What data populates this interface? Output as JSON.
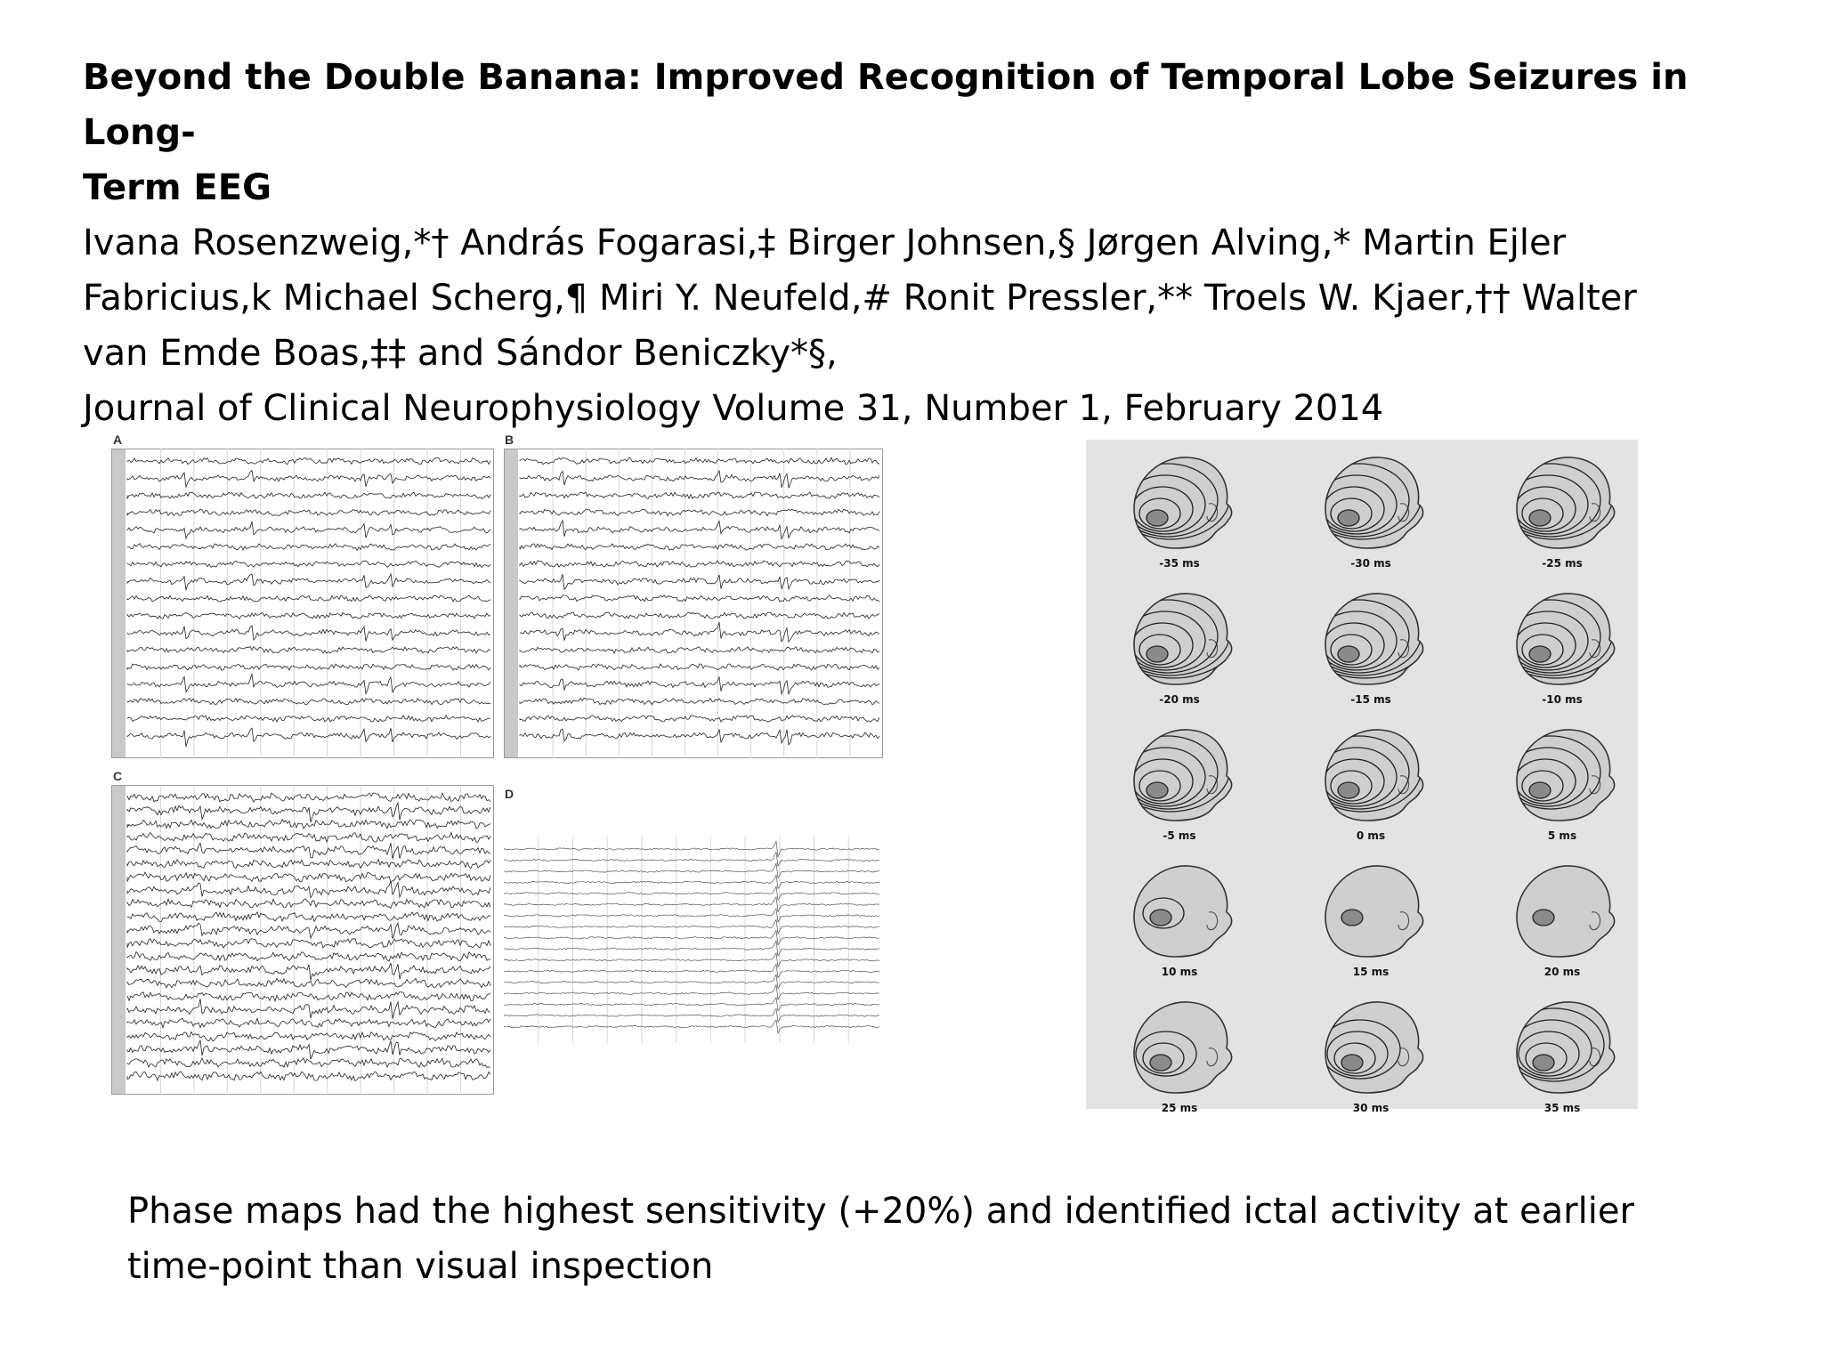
{
  "header": {
    "title_line1": "Beyond the Double Banana: Improved Recognition of Temporal Lobe Seizures in Long-",
    "title_line2": "Term EEG",
    "authors_line1": "Ivana Rosenzweig,*† András Fogarasi,‡ Birger Johnsen,§ Jørgen Alving,* Martin Ejler",
    "authors_line2": "Fabricius,k Michael Scherg,¶ Miri Y. Neufeld,# Ronit Pressler,** Troels W. Kjaer,†† Walter",
    "authors_line3": "van Emde Boas,‡‡ and Sándor Beniczky*§,",
    "journal": "Journal of Clinical Neurophysiology  Volume 31, Number 1, February 2014"
  },
  "eeg_figure": {
    "panels": [
      {
        "label": "A"
      },
      {
        "label": "B"
      },
      {
        "label": "C"
      },
      {
        "label": "D"
      }
    ]
  },
  "phase_maps": {
    "labels": [
      "-35 ms",
      "-30 ms",
      "-25 ms",
      "-20 ms",
      "-15 ms",
      "-10 ms",
      "-5 ms",
      "0 ms",
      "5 ms",
      "10 ms",
      "15 ms",
      "20 ms",
      "25 ms",
      "30 ms",
      "35 ms"
    ]
  },
  "caption": {
    "line1": "Phase maps had the highest sensitivity (+20%) and identified ictal activity at earlier",
    "line2": "time-point than visual inspection"
  }
}
